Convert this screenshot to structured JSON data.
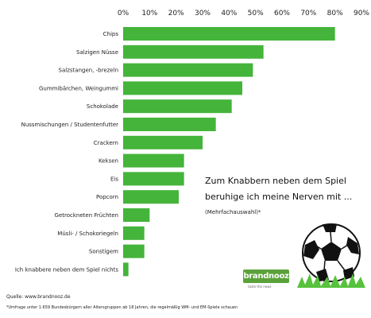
{
  "chart_data": {
    "type": "bar",
    "orientation": "horizontal",
    "categories": [
      "Chips",
      "Salzigen Nüsse",
      "Salzstangen, -brezeln",
      "Gummibärchen, Weingummi",
      "Schokolade",
      "Nussmischungen / Studentenfutter",
      "Crackern",
      "Keksen",
      "Eis",
      "Popcorn",
      "Getrockneten Früchten",
      "Müsli- / Schokoriegeln",
      "Sonstigem",
      "Ich knabbere neben dem Spiel nichts"
    ],
    "values": [
      80,
      53,
      49,
      45,
      41,
      35,
      30,
      23,
      23,
      21,
      10,
      8,
      8,
      2
    ],
    "xlim": [
      0,
      90
    ],
    "xticks": [
      "0%",
      "10%",
      "20%",
      "30%",
      "40%",
      "50%",
      "60%",
      "70%",
      "80%",
      "90%"
    ],
    "axis_position": "top",
    "grid": false,
    "bar_color": "#44b43a",
    "title_lines": [
      "Zum Knabbern neben dem Spiel",
      "beruhige ich meine Nerven mit ..."
    ],
    "note": "(Mehrfachauswahl)*"
  },
  "source": "Quelle: www.brandnooz.de",
  "footnote": "*Umfrage unter 1.659 Bundesbürgern aller Altersgruppen ab 18 Jahren, die regelmäßig WM- und EM-Spiele schauen",
  "logo": {
    "text": "brandnooz",
    "tagline": "taste the news",
    "color": "#5aa13a"
  },
  "illustration": "soccer-ball-icon"
}
